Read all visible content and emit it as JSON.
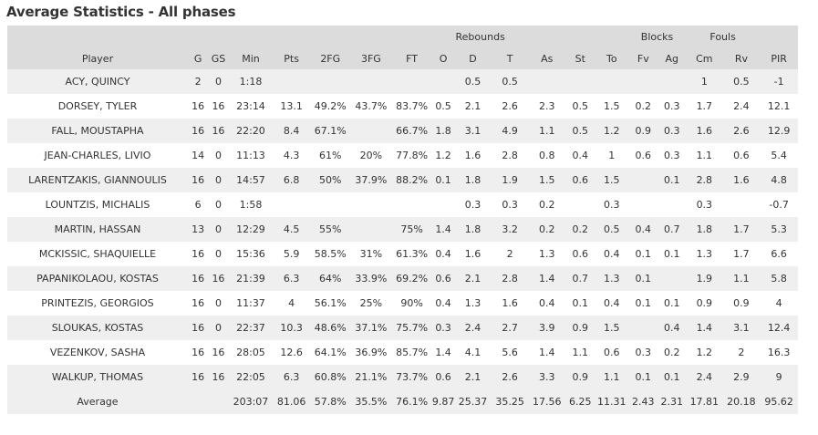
{
  "title": "Average Statistics - All phases",
  "group_headers": {
    "rebounds": "Rebounds",
    "blocks": "Blocks",
    "fouls": "Fouls"
  },
  "columns": [
    "Player",
    "G",
    "GS",
    "Min",
    "Pts",
    "2FG",
    "3FG",
    "FT",
    "O",
    "D",
    "T",
    "As",
    "St",
    "To",
    "Fv",
    "Ag",
    "Cm",
    "Rv",
    "PIR"
  ],
  "rows": [
    [
      "ACY, QUINCY",
      "2",
      "0",
      "1:18",
      "",
      "",
      "",
      "",
      "",
      "0.5",
      "0.5",
      "",
      "",
      "",
      "",
      "",
      "1",
      "0.5",
      "-1"
    ],
    [
      "DORSEY, TYLER",
      "16",
      "16",
      "23:14",
      "13.1",
      "49.2%",
      "43.7%",
      "83.7%",
      "0.5",
      "2.1",
      "2.6",
      "2.3",
      "0.5",
      "1.5",
      "0.2",
      "0.3",
      "1.7",
      "2.4",
      "12.1"
    ],
    [
      "FALL, MOUSTAPHA",
      "16",
      "16",
      "22:20",
      "8.4",
      "67.1%",
      "",
      "66.7%",
      "1.8",
      "3.1",
      "4.9",
      "1.1",
      "0.5",
      "1.2",
      "0.9",
      "0.3",
      "1.6",
      "2.6",
      "12.9"
    ],
    [
      "JEAN-CHARLES, LIVIO",
      "14",
      "0",
      "11:13",
      "4.3",
      "61%",
      "20%",
      "77.8%",
      "1.2",
      "1.6",
      "2.8",
      "0.8",
      "0.4",
      "1",
      "0.6",
      "0.3",
      "1.1",
      "0.6",
      "5.4"
    ],
    [
      "LARENTZAKIS, GIANNOULIS",
      "16",
      "0",
      "14:57",
      "6.8",
      "50%",
      "37.9%",
      "88.2%",
      "0.1",
      "1.8",
      "1.9",
      "1.5",
      "0.6",
      "1.5",
      "",
      "0.1",
      "2.8",
      "1.6",
      "4.8"
    ],
    [
      "LOUNTZIS, MICHALIS",
      "6",
      "0",
      "1:58",
      "",
      "",
      "",
      "",
      "",
      "0.3",
      "0.3",
      "0.2",
      "",
      "0.3",
      "",
      "",
      "0.3",
      "",
      "-0.7"
    ],
    [
      "MARTIN, HASSAN",
      "13",
      "0",
      "12:29",
      "4.5",
      "55%",
      "",
      "75%",
      "1.4",
      "1.8",
      "3.2",
      "0.2",
      "0.2",
      "0.5",
      "0.4",
      "0.7",
      "1.8",
      "1.7",
      "5.3"
    ],
    [
      "MCKISSIC, SHAQUIELLE",
      "16",
      "0",
      "15:36",
      "5.9",
      "58.5%",
      "31%",
      "61.3%",
      "0.4",
      "1.6",
      "2",
      "1.3",
      "0.6",
      "0.4",
      "0.1",
      "0.1",
      "1.3",
      "1.7",
      "6.6"
    ],
    [
      "PAPANIKOLAOU, KOSTAS",
      "16",
      "16",
      "21:39",
      "6.3",
      "64%",
      "33.9%",
      "69.2%",
      "0.6",
      "2.1",
      "2.8",
      "1.4",
      "0.7",
      "1.3",
      "0.1",
      "",
      "1.9",
      "1.1",
      "5.8"
    ],
    [
      "PRINTEZIS, GEORGIOS",
      "16",
      "0",
      "11:37",
      "4",
      "56.1%",
      "25%",
      "90%",
      "0.4",
      "1.3",
      "1.6",
      "0.4",
      "0.1",
      "0.4",
      "0.1",
      "0.1",
      "0.9",
      "0.9",
      "4"
    ],
    [
      "SLOUKAS, KOSTAS",
      "16",
      "0",
      "22:37",
      "10.3",
      "48.6%",
      "37.1%",
      "75.7%",
      "0.3",
      "2.4",
      "2.7",
      "3.9",
      "0.9",
      "1.5",
      "",
      "0.4",
      "1.4",
      "3.1",
      "12.4"
    ],
    [
      "VEZENKOV, SASHA",
      "16",
      "16",
      "28:05",
      "12.6",
      "64.1%",
      "36.9%",
      "85.7%",
      "1.4",
      "4.1",
      "5.6",
      "1.4",
      "1.1",
      "0.6",
      "0.3",
      "0.2",
      "1.2",
      "2",
      "16.3"
    ],
    [
      "WALKUP, THOMAS",
      "16",
      "16",
      "22:05",
      "6.3",
      "60.8%",
      "21.1%",
      "73.7%",
      "0.6",
      "2.1",
      "2.6",
      "3.3",
      "0.9",
      "1.1",
      "0.1",
      "0.1",
      "2.4",
      "2.9",
      "9"
    ]
  ],
  "footer": [
    "Average",
    "",
    "",
    "203:07",
    "81.06",
    "57.8%",
    "35.5%",
    "76.1%",
    "9.87",
    "25.37",
    "35.25",
    "17.56",
    "6.25",
    "11.31",
    "2.43",
    "2.31",
    "17.81",
    "20.18",
    "95.62"
  ]
}
